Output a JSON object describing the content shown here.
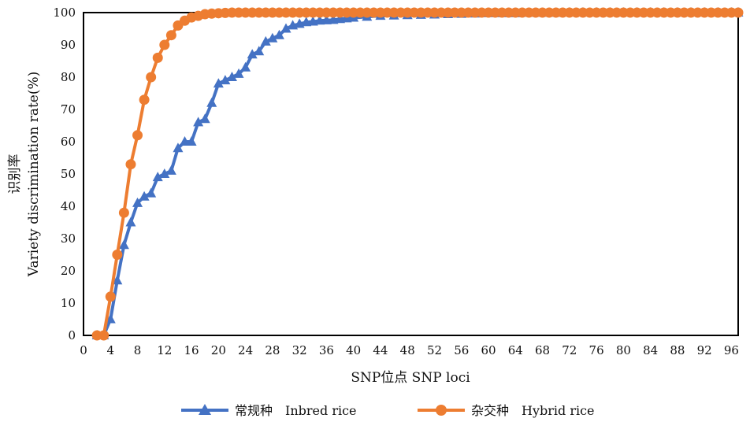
{
  "chart_data": {
    "type": "line",
    "xlabel": "SNP位点 SNP loci",
    "ylabel_cn": "识别率",
    "ylabel_en": "Variety discrimination rate(%)",
    "xlim": [
      0,
      97
    ],
    "ylim": [
      0,
      100
    ],
    "x_ticks": [
      0,
      4,
      8,
      12,
      16,
      20,
      24,
      28,
      32,
      36,
      40,
      44,
      48,
      52,
      56,
      60,
      64,
      68,
      72,
      76,
      80,
      84,
      88,
      92,
      96
    ],
    "y_ticks": [
      0,
      10,
      20,
      30,
      40,
      50,
      60,
      70,
      80,
      90,
      100
    ],
    "grid": false,
    "legend_position": "bottom",
    "series": [
      {
        "name": "常规种　Inbred rice",
        "color": "#4472c4",
        "marker": "triangle",
        "x": [
          2,
          3,
          4,
          5,
          6,
          7,
          8,
          9,
          10,
          11,
          12,
          13,
          14,
          15,
          16,
          17,
          18,
          19,
          20,
          21,
          22,
          23,
          24,
          25,
          26,
          27,
          28,
          29,
          30,
          31,
          32,
          33,
          34,
          35,
          36,
          37,
          38,
          39,
          40,
          42,
          44,
          46,
          48,
          50,
          52,
          54,
          56,
          58,
          60,
          62,
          64,
          66,
          68,
          70,
          72,
          74,
          76,
          78,
          80,
          82,
          84,
          86,
          88,
          90,
          92,
          94,
          96,
          97
        ],
        "y": [
          0,
          0,
          5,
          17,
          28,
          35,
          41,
          43,
          44,
          49,
          50,
          51,
          58,
          60,
          60,
          66,
          67,
          72,
          78,
          79,
          80,
          81,
          83,
          87,
          88,
          91,
          92,
          93,
          95,
          96,
          96.5,
          97,
          97.2,
          97.5,
          97.6,
          97.7,
          98,
          98.2,
          98.4,
          98.7,
          99,
          99.1,
          99.2,
          99.3,
          99.4,
          99.5,
          99.6,
          99.7,
          99.8,
          99.8,
          99.8,
          99.9,
          99.9,
          99.9,
          100,
          100,
          100,
          100,
          100,
          100,
          100,
          100,
          100,
          100,
          100,
          100,
          100,
          100
        ]
      },
      {
        "name": "杂交种　Hybrid rice",
        "color": "#ed7d31",
        "marker": "circle",
        "x": [
          2,
          3,
          4,
          5,
          6,
          7,
          8,
          9,
          10,
          11,
          12,
          13,
          14,
          15,
          16,
          17,
          18,
          19,
          20,
          21,
          22,
          23,
          24,
          25,
          26,
          27,
          28,
          29,
          30,
          31,
          32,
          33,
          34,
          35,
          36,
          37,
          38,
          39,
          40,
          41,
          42,
          43,
          44,
          45,
          46,
          47,
          48,
          49,
          50,
          51,
          52,
          53,
          54,
          55,
          56,
          57,
          58,
          59,
          60,
          61,
          62,
          63,
          64,
          65,
          66,
          67,
          68,
          69,
          70,
          71,
          72,
          73,
          74,
          75,
          76,
          77,
          78,
          79,
          80,
          81,
          82,
          83,
          84,
          85,
          86,
          87,
          88,
          89,
          90,
          91,
          92,
          93,
          94,
          95,
          96,
          97
        ],
        "y": [
          0,
          0,
          12,
          25,
          38,
          53,
          62,
          73,
          80,
          86,
          90,
          93,
          96,
          97.5,
          98.5,
          99,
          99.5,
          99.7,
          99.8,
          99.9,
          100,
          100,
          100,
          100,
          100,
          100,
          100,
          100,
          100,
          100,
          100,
          100,
          100,
          100,
          100,
          100,
          100,
          100,
          100,
          100,
          100,
          100,
          100,
          100,
          100,
          100,
          100,
          100,
          100,
          100,
          100,
          100,
          100,
          100,
          100,
          100,
          100,
          100,
          100,
          100,
          100,
          100,
          100,
          100,
          100,
          100,
          100,
          100,
          100,
          100,
          100,
          100,
          100,
          100,
          100,
          100,
          100,
          100,
          100,
          100,
          100,
          100,
          100,
          100,
          100,
          100,
          100,
          100,
          100,
          100,
          100,
          100,
          100,
          100,
          100,
          100
        ]
      }
    ]
  }
}
